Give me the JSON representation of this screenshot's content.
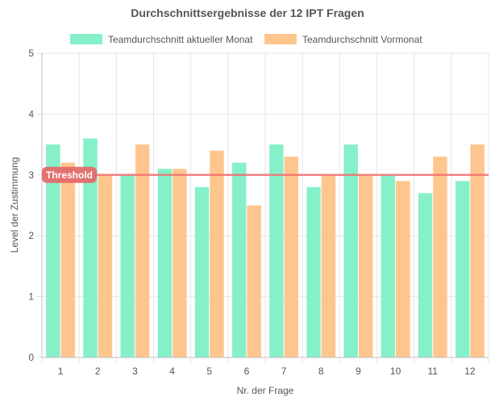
{
  "chart_data": {
    "type": "bar",
    "title": "Durchschnittsergebnisse der 12 IPT Fragen",
    "xlabel": "Nr. der Frage",
    "ylabel": "Level der Zustimmung",
    "categories": [
      "1",
      "2",
      "3",
      "4",
      "5",
      "6",
      "7",
      "8",
      "9",
      "10",
      "11",
      "12"
    ],
    "ylim": [
      0,
      5
    ],
    "yticks": [
      "0",
      "1",
      "2",
      "3",
      "4",
      "5"
    ],
    "grid": true,
    "legend_position": "top",
    "series": [
      {
        "name": "Teamdurchschnitt aktueller Monat",
        "color": "#86f0c8",
        "values": [
          3.5,
          3.6,
          3.0,
          3.1,
          2.8,
          3.2,
          3.5,
          2.8,
          3.5,
          3.0,
          2.7,
          2.9
        ]
      },
      {
        "name": "Teamdurchschnitt Vormonat",
        "color": "#ffc58f",
        "values": [
          3.2,
          3.0,
          3.5,
          3.1,
          3.4,
          2.5,
          3.3,
          3.0,
          3.0,
          2.9,
          3.3,
          3.5
        ]
      }
    ],
    "annotation": {
      "label": "Threshold",
      "value": 3.0,
      "color": "#f06e6e"
    }
  }
}
